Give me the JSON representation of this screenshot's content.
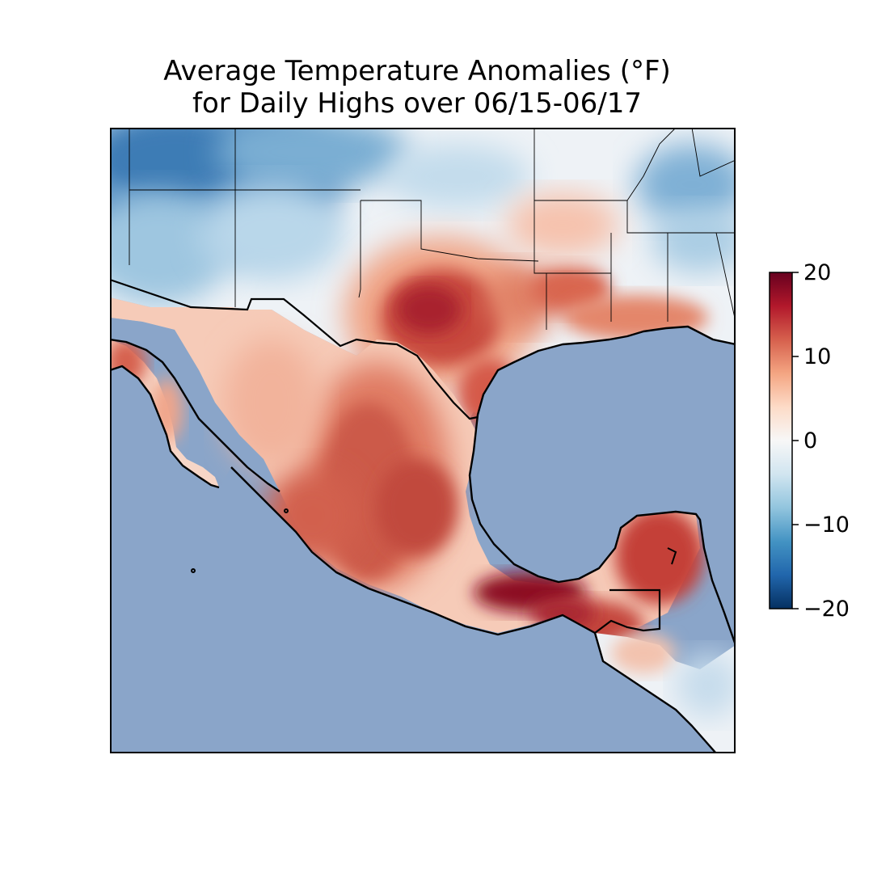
{
  "title": {
    "line1": "Average Temperature Anomalies (°F)",
    "line2": "for Daily Highs over 06/15-06/17"
  },
  "colorbar": {
    "min": -20,
    "max": 20,
    "ticks": [
      {
        "value": 20,
        "label": "20"
      },
      {
        "value": 10,
        "label": "10"
      },
      {
        "value": 0,
        "label": "0"
      },
      {
        "value": -10,
        "label": "−10"
      },
      {
        "value": -20,
        "label": "−20"
      }
    ],
    "colormap": "RdBu_r",
    "stops": [
      "#053061",
      "#2166ac",
      "#4393c3",
      "#92c5de",
      "#d1e5f0",
      "#f7f7f7",
      "#fddbc7",
      "#f4a582",
      "#d6604d",
      "#b2182b",
      "#67001f"
    ]
  },
  "map": {
    "ocean_color": "#8aa5c9",
    "region": "Southern United States, Mexico and Central America"
  }
}
